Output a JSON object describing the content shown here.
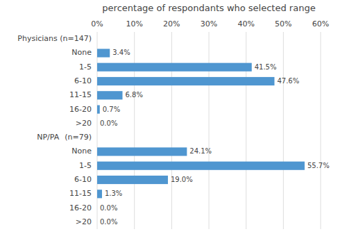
{
  "chart_data": {
    "type": "bar",
    "orientation": "horizontal",
    "title": "percentage of respondants who selected range",
    "categories": [
      ">20",
      "16-20",
      "11-15",
      "6-10",
      "1-5",
      "None",
      "(n=79)",
      ">20",
      "16-20",
      "11-15",
      "6-10",
      "1-5",
      "None",
      "Physicians (n=147)"
    ],
    "values": [
      0.0,
      0.0,
      1.3,
      19.0,
      55.7,
      24.1,
      null,
      0.0,
      0.7,
      6.8,
      47.6,
      41.5,
      3.4,
      null
    ],
    "value_labels": [
      "0.0%",
      "0.0%",
      "1.3%",
      "19.0%",
      "55.7%",
      "24.1%",
      null,
      "0.0%",
      "0.7%",
      "6.8%",
      "47.6%",
      "41.5%",
      "3.4%",
      null
    ],
    "color": "#4f96d0",
    "xlim": [
      0,
      60
    ],
    "xticks": [
      {
        "value": 0,
        "label": "0%"
      },
      {
        "value": 10,
        "label": "10%"
      },
      {
        "value": 20,
        "label": "20%"
      },
      {
        "value": 30,
        "label": "30%"
      },
      {
        "value": 40,
        "label": "40%"
      },
      {
        "value": 50,
        "label": "50%"
      },
      {
        "value": 60,
        "label": "60%"
      }
    ],
    "grid": true,
    "data_labels": true,
    "annotations": [
      {
        "text": "NP/PA",
        "category": "(n=79)"
      }
    ]
  }
}
